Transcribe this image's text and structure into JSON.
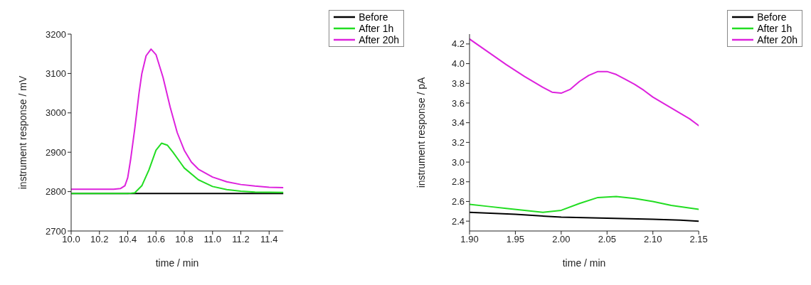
{
  "chart_data": [
    {
      "type": "line",
      "xlabel": "time / min",
      "ylabel": "instrument response / mV",
      "xlim": [
        10.0,
        11.5
      ],
      "ylim": [
        2700,
        3200
      ],
      "xticks": [
        {
          "value": 10,
          "label": "10.0"
        },
        {
          "value": 10.2,
          "label": "10.2"
        },
        {
          "value": 10.4,
          "label": "10.4"
        },
        {
          "value": 10.6,
          "label": "10.6"
        },
        {
          "value": 10.8,
          "label": "10.8"
        },
        {
          "value": 11,
          "label": "11.0"
        },
        {
          "value": 11.2,
          "label": "11.2"
        },
        {
          "value": 11.4,
          "label": "11.4"
        }
      ],
      "yticks": [
        2700,
        2800,
        2900,
        3000,
        3100,
        3200
      ],
      "legend": "top right",
      "grid": false,
      "marker": "none",
      "line_style": "solid",
      "series": [
        {
          "name": "Before",
          "color": "#000000",
          "x": [
            10.0,
            10.5,
            11.0,
            11.5
          ],
          "values": [
            2795,
            2795,
            2795,
            2795
          ]
        },
        {
          "name": "After 1h",
          "color": "#22dd22",
          "x": [
            10.0,
            10.4,
            10.45,
            10.5,
            10.55,
            10.6,
            10.64,
            10.68,
            10.72,
            10.8,
            10.9,
            11.0,
            11.1,
            11.2,
            11.3,
            11.5
          ],
          "values": [
            2795,
            2795,
            2797,
            2815,
            2855,
            2905,
            2923,
            2918,
            2900,
            2860,
            2830,
            2813,
            2805,
            2801,
            2799,
            2798
          ]
        },
        {
          "name": "After 20h",
          "color": "#dd22dd",
          "x": [
            10.0,
            10.3,
            10.35,
            10.38,
            10.4,
            10.42,
            10.45,
            10.48,
            10.5,
            10.53,
            10.565,
            10.6,
            10.65,
            10.7,
            10.75,
            10.8,
            10.85,
            10.9,
            11.0,
            11.1,
            11.2,
            11.3,
            11.4,
            11.5
          ],
          "values": [
            2806,
            2806,
            2808,
            2815,
            2835,
            2880,
            2960,
            3050,
            3100,
            3145,
            3162,
            3148,
            3090,
            3015,
            2950,
            2905,
            2875,
            2857,
            2837,
            2825,
            2818,
            2814,
            2811,
            2810
          ]
        }
      ]
    },
    {
      "type": "line",
      "xlabel": "time / min",
      "ylabel": "instrument response / pA",
      "xlim": [
        1.9,
        2.15
      ],
      "ylim": [
        2.3,
        4.3
      ],
      "xticks": [
        {
          "value": 1.9,
          "label": "1.90"
        },
        {
          "value": 1.95,
          "label": "1.95"
        },
        {
          "value": 2,
          "label": "2.00"
        },
        {
          "value": 2.05,
          "label": "2.05"
        },
        {
          "value": 2.1,
          "label": "2.10"
        },
        {
          "value": 2.15,
          "label": "2.15"
        }
      ],
      "yticks": [
        2.4,
        2.6,
        2.8,
        {
          "value": 3,
          "label": "3.0"
        },
        3.2,
        3.4,
        3.6,
        3.8,
        {
          "value": 4,
          "label": "4.0"
        },
        4.2
      ],
      "legend": "top right",
      "grid": false,
      "marker": "none",
      "line_style": "solid",
      "series": [
        {
          "name": "Before",
          "color": "#000000",
          "x": [
            1.9,
            1.95,
            2.0,
            2.05,
            2.1,
            2.13,
            2.15
          ],
          "values": [
            2.49,
            2.47,
            2.44,
            2.43,
            2.42,
            2.41,
            2.4
          ]
        },
        {
          "name": "After 1h",
          "color": "#22dd22",
          "x": [
            1.9,
            1.92,
            1.94,
            1.96,
            1.98,
            2.0,
            2.02,
            2.04,
            2.06,
            2.08,
            2.1,
            2.12,
            2.15
          ],
          "values": [
            2.57,
            2.55,
            2.53,
            2.51,
            2.49,
            2.51,
            2.58,
            2.64,
            2.65,
            2.63,
            2.6,
            2.56,
            2.52
          ]
        },
        {
          "name": "After 20h",
          "color": "#dd22dd",
          "x": [
            1.9,
            1.92,
            1.94,
            1.96,
            1.98,
            1.99,
            2.0,
            2.01,
            2.02,
            2.03,
            2.04,
            2.05,
            2.06,
            2.07,
            2.08,
            2.09,
            2.1,
            2.12,
            2.14,
            2.15
          ],
          "values": [
            4.25,
            4.12,
            3.99,
            3.87,
            3.76,
            3.71,
            3.7,
            3.74,
            3.82,
            3.88,
            3.92,
            3.92,
            3.89,
            3.84,
            3.79,
            3.73,
            3.66,
            3.55,
            3.44,
            3.37
          ]
        }
      ]
    }
  ]
}
